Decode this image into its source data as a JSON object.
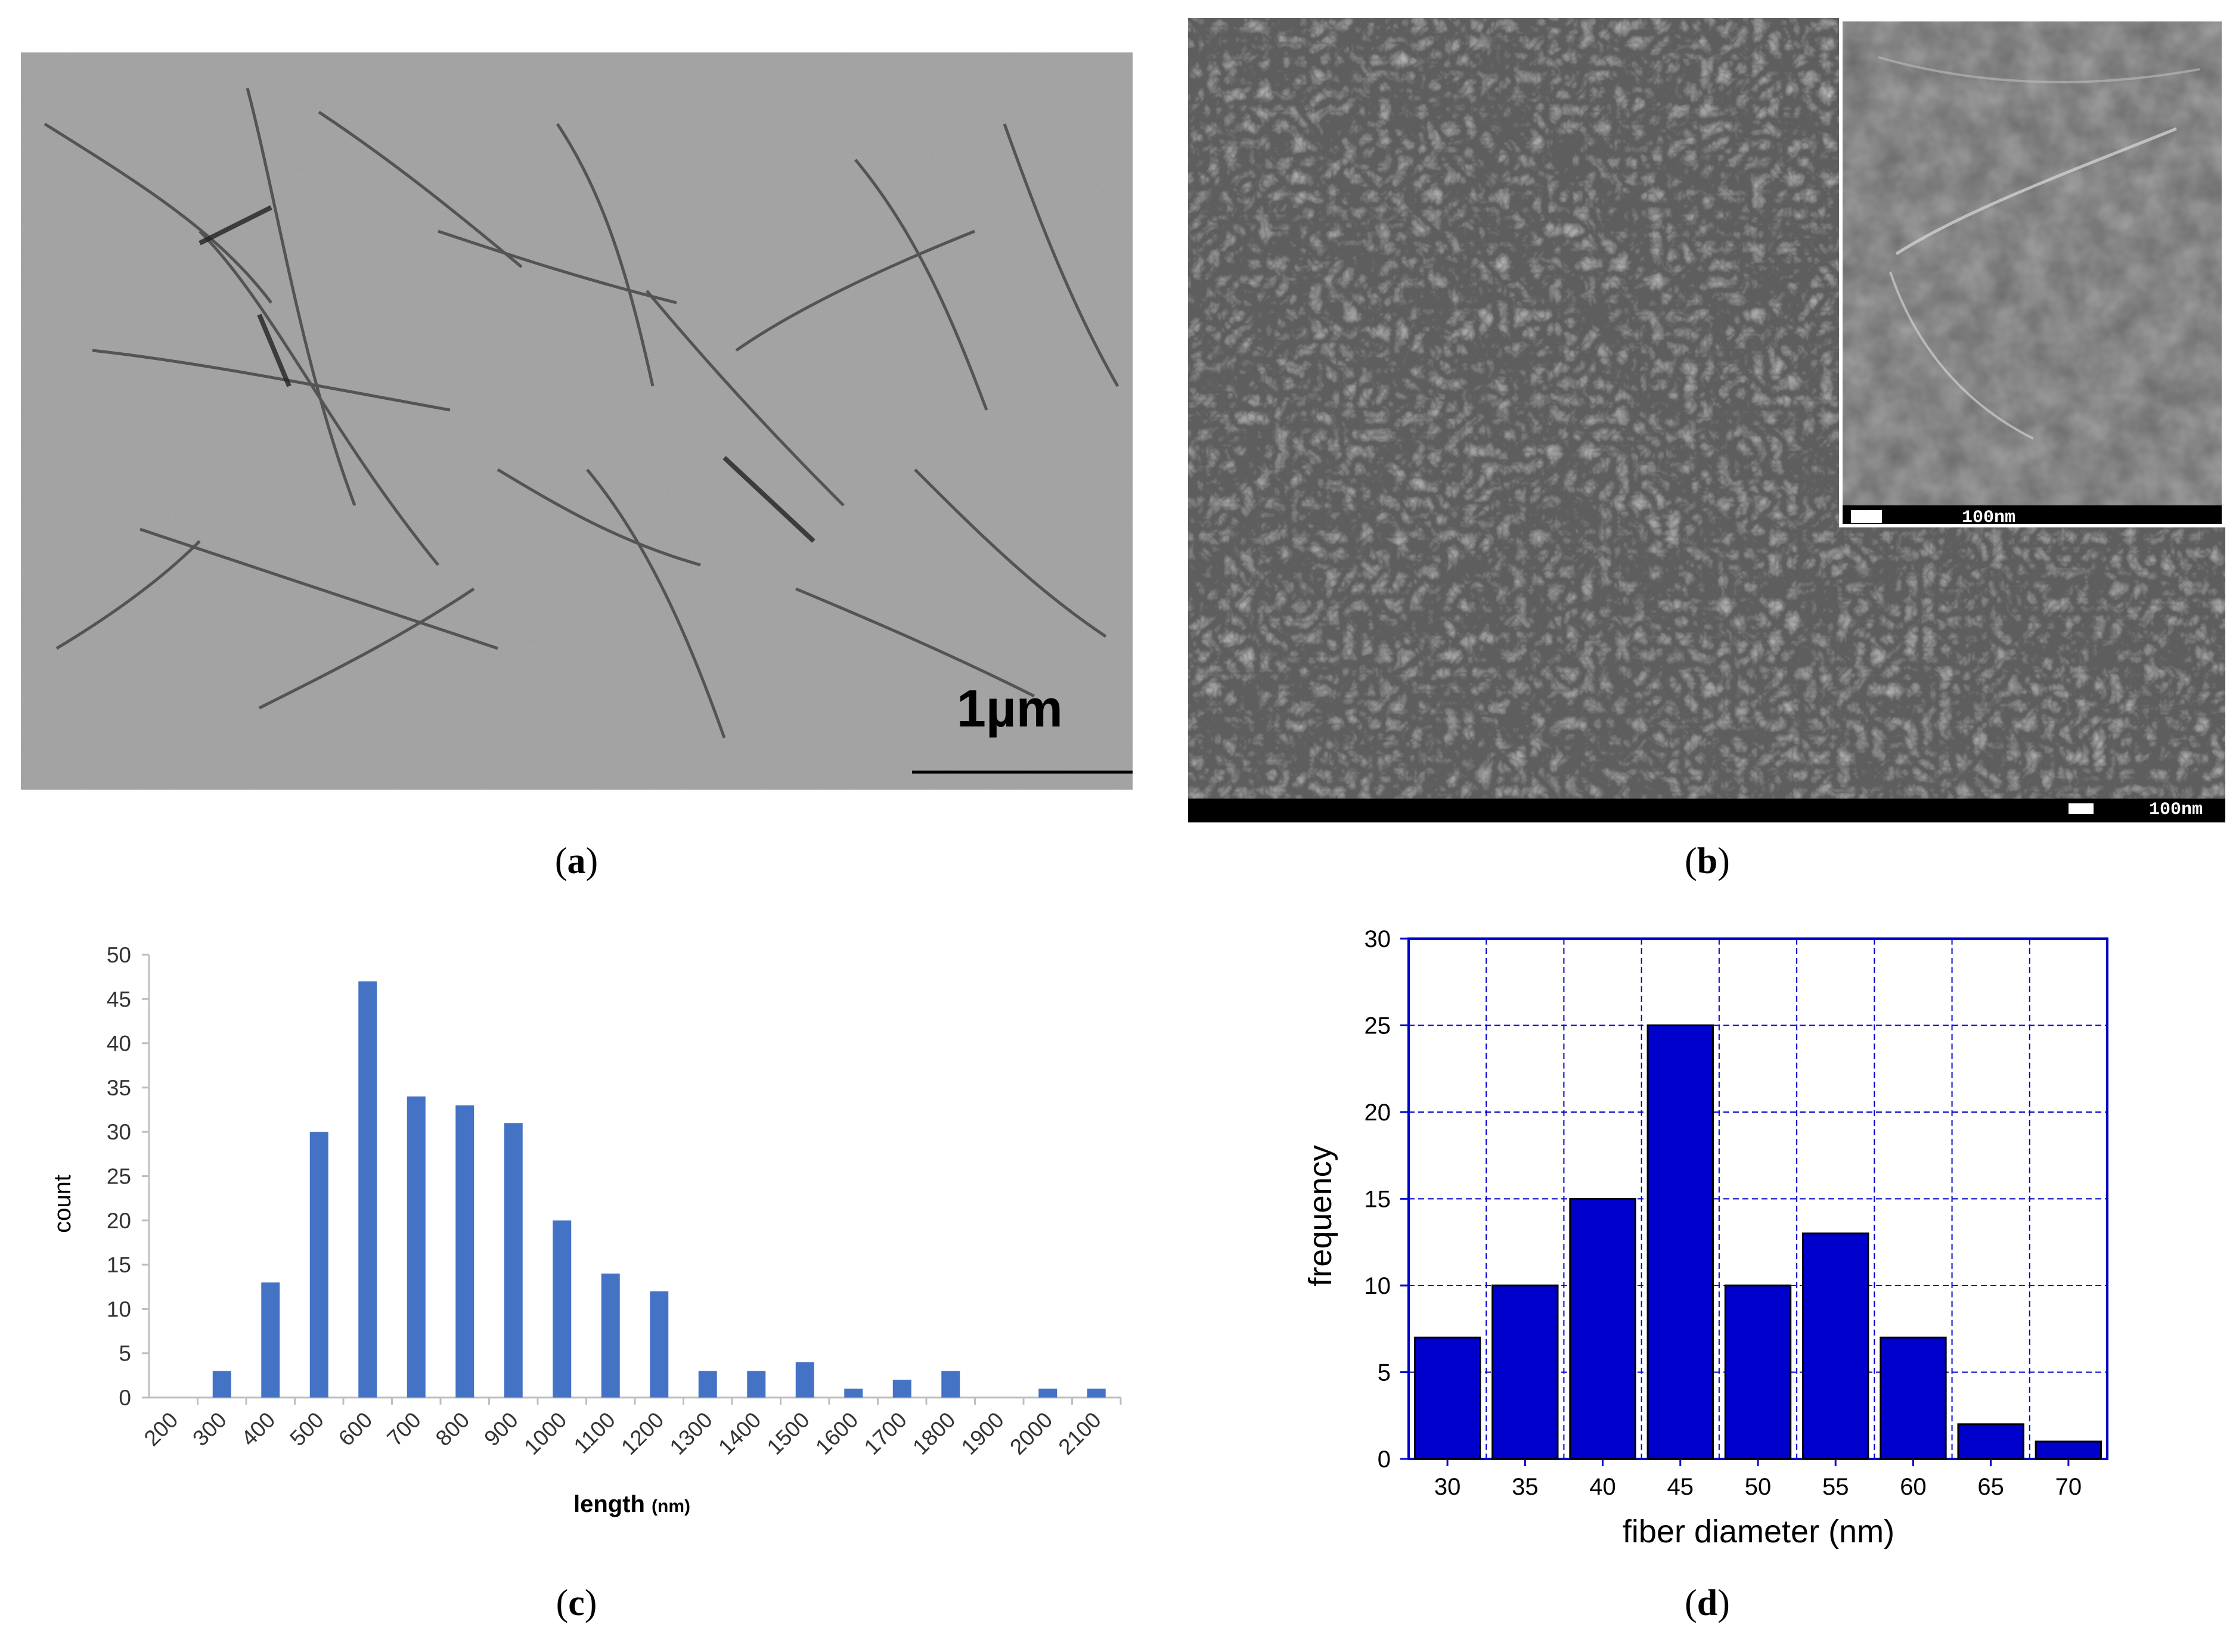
{
  "panels": {
    "a": {
      "label": "a",
      "scale_bar_label": "1µm"
    },
    "b": {
      "label": "b",
      "scale_bar_label": "100nm",
      "inset_scale_bar_label": "100nm"
    },
    "c": {
      "label": "c"
    },
    "d": {
      "label": "d"
    }
  },
  "colors": {
    "bar_c": "#4472C4",
    "bar_d": "#0000CC",
    "grid_d": "#0000CC",
    "axis_c": "#BFBFBF"
  },
  "chart_data": [
    {
      "id": "c",
      "type": "bar",
      "xlabel": "length",
      "xlabel_unit": "(nm)",
      "ylabel": "count",
      "categories": [
        "200",
        "300",
        "400",
        "500",
        "600",
        "700",
        "800",
        "900",
        "1000",
        "1100",
        "1200",
        "1300",
        "1400",
        "1500",
        "1600",
        "1700",
        "1800",
        "1900",
        "2000",
        "2100"
      ],
      "values": [
        0,
        3,
        13,
        30,
        47,
        34,
        33,
        31,
        20,
        14,
        12,
        3,
        3,
        4,
        1,
        2,
        3,
        0,
        1,
        1
      ],
      "ylim": [
        0,
        50
      ],
      "yticks": [
        0,
        5,
        10,
        15,
        20,
        25,
        30,
        35,
        40,
        45,
        50
      ],
      "grid": false
    },
    {
      "id": "d",
      "type": "bar",
      "xlabel": "fiber diameter (nm)",
      "ylabel": "frequency",
      "categories": [
        "30",
        "35",
        "40",
        "45",
        "50",
        "55",
        "60",
        "65",
        "70"
      ],
      "values": [
        7,
        10,
        15,
        25,
        10,
        13,
        7,
        2,
        1
      ],
      "ylim": [
        0,
        30
      ],
      "yticks": [
        0,
        5,
        10,
        15,
        20,
        25,
        30
      ],
      "grid": true
    }
  ]
}
